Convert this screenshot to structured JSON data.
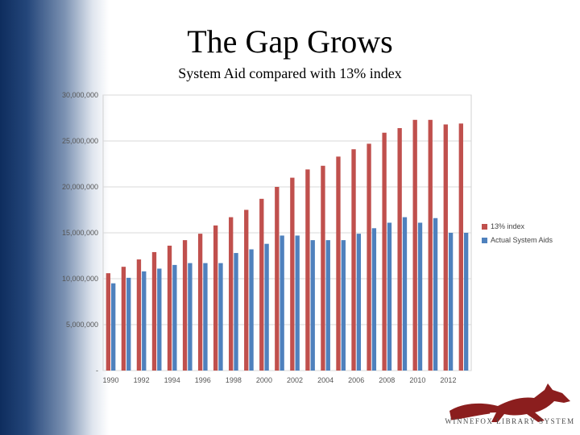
{
  "slide": {
    "title": "The Gap Grows",
    "subtitle": "System Aid compared with 13% index",
    "logo_text": "WINNEFOX LIBRARY SYSTEM"
  },
  "chart_data": {
    "type": "bar",
    "title": "",
    "xlabel": "",
    "ylabel": "",
    "ylim": [
      0,
      30000000
    ],
    "yticks": [
      0,
      5000000,
      10000000,
      15000000,
      20000000,
      25000000,
      30000000
    ],
    "ytick_labels": [
      "-",
      "5,000,000",
      "10,000,000",
      "15,000,000",
      "20,000,000",
      "25,000,000",
      "30,000,000"
    ],
    "categories": [
      "1990",
      "1991",
      "1992",
      "1993",
      "1994",
      "1995",
      "1996",
      "1997",
      "1998",
      "1999",
      "2000",
      "2001",
      "2002",
      "2003",
      "2004",
      "2005",
      "2006",
      "2007",
      "2008",
      "2009",
      "2010",
      "2011",
      "2012",
      "2013"
    ],
    "xtick_labels": [
      "1990",
      "",
      "1992",
      "",
      "1994",
      "",
      "1996",
      "",
      "1998",
      "",
      "2000",
      "",
      "2002",
      "",
      "2004",
      "",
      "2006",
      "",
      "2008",
      "",
      "2010",
      "",
      "2012",
      ""
    ],
    "grid": true,
    "legend_position": "right",
    "series": [
      {
        "name": "13% index",
        "color": "#c0504d",
        "values": [
          10600000,
          11300000,
          12100000,
          12900000,
          13600000,
          14200000,
          14900000,
          15800000,
          16700000,
          17500000,
          18700000,
          20000000,
          21000000,
          21900000,
          22300000,
          23300000,
          24100000,
          24700000,
          25900000,
          26400000,
          27300000,
          27300000,
          26800000,
          26900000
        ]
      },
      {
        "name": "Actual System Aids",
        "color": "#4f81bd",
        "values": [
          9500000,
          10100000,
          10800000,
          11100000,
          11500000,
          11700000,
          11700000,
          11700000,
          12800000,
          13200000,
          13800000,
          14700000,
          14700000,
          14200000,
          14200000,
          14200000,
          14900000,
          15500000,
          16100000,
          16700000,
          16100000,
          16600000,
          15000000,
          15000000
        ]
      }
    ]
  }
}
